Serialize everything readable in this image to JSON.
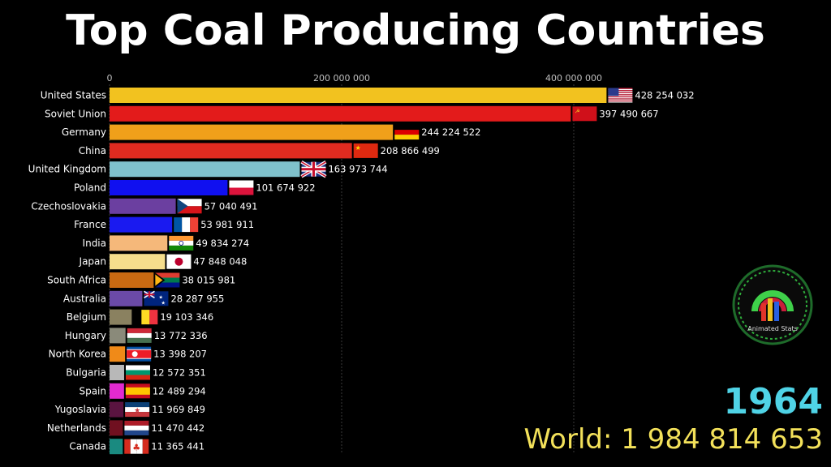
{
  "title": "Top Coal Producing Countries",
  "year": "1964",
  "world": "World: 1 984 814 653",
  "logo_text": "Animated Stats",
  "chart_data": {
    "type": "bar",
    "orientation": "horizontal",
    "xlim": [
      0,
      480000000
    ],
    "ticks": [
      {
        "value": 0,
        "label": "0"
      },
      {
        "value": 200000000,
        "label": "200 000 000"
      },
      {
        "value": 400000000,
        "label": "400 000 000"
      }
    ],
    "grid": true,
    "bars": [
      {
        "country": "United States",
        "value": 428254032,
        "value_label": "428 254 032",
        "color": "#f2c21f",
        "flag": "us"
      },
      {
        "country": "Soviet Union",
        "value": 397490667,
        "value_label": "397 490 667",
        "color": "#e31b1b",
        "flag": "su"
      },
      {
        "country": "Germany",
        "value": 244224522,
        "value_label": "244 224 522",
        "color": "#f0a01a",
        "flag": "de"
      },
      {
        "country": "China",
        "value": 208866499,
        "value_label": "208 866 499",
        "color": "#e02b20",
        "flag": "cn"
      },
      {
        "country": "United Kingdom",
        "value": 163973744,
        "value_label": "163 973 744",
        "color": "#7fc1cc",
        "flag": "gb"
      },
      {
        "country": "Poland",
        "value": 101674922,
        "value_label": "101 674 922",
        "color": "#1010f0",
        "flag": "pl"
      },
      {
        "country": "Czechoslovakia",
        "value": 57040491,
        "value_label": "57 040 491",
        "color": "#6b3fa0",
        "flag": "cz"
      },
      {
        "country": "France",
        "value": 53981911,
        "value_label": "53 981 911",
        "color": "#1a1af0",
        "flag": "fr"
      },
      {
        "country": "India",
        "value": 49834274,
        "value_label": "49 834 274",
        "color": "#f5b87a",
        "flag": "in"
      },
      {
        "country": "Japan",
        "value": 47848048,
        "value_label": "47 848 048",
        "color": "#f6de8c",
        "flag": "jp"
      },
      {
        "country": "South Africa",
        "value": 38015981,
        "value_label": "38 015 981",
        "color": "#c96a12",
        "flag": "za"
      },
      {
        "country": "Australia",
        "value": 28287955,
        "value_label": "28 287 955",
        "color": "#6b4aa8",
        "flag": "au"
      },
      {
        "country": "Belgium",
        "value": 19103346,
        "value_label": "19 103 346",
        "color": "#8a8160",
        "flag": "be"
      },
      {
        "country": "Hungary",
        "value": 13772336,
        "value_label": "13 772 336",
        "color": "#8a8a7a",
        "flag": "hu"
      },
      {
        "country": "North Korea",
        "value": 13398207,
        "value_label": "13 398 207",
        "color": "#f08a18",
        "flag": "kp"
      },
      {
        "country": "Bulgaria",
        "value": 12572351,
        "value_label": "12 572 351",
        "color": "#b8b8b8",
        "flag": "bg"
      },
      {
        "country": "Spain",
        "value": 12489294,
        "value_label": "12 489 294",
        "color": "#e22ad0",
        "flag": "es"
      },
      {
        "country": "Yugoslavia",
        "value": 11969849,
        "value_label": "11 969 849",
        "color": "#5a1440",
        "flag": "yu"
      },
      {
        "country": "Netherlands",
        "value": 11470442,
        "value_label": "11 470 442",
        "color": "#701020",
        "flag": "nl"
      },
      {
        "country": "Canada",
        "value": 11365441,
        "value_label": "11 365 441",
        "color": "#1a8a80",
        "flag": "ca"
      }
    ]
  }
}
